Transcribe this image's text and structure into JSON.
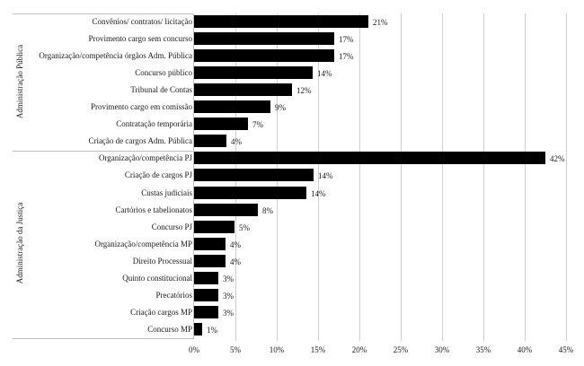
{
  "chart_data": {
    "type": "bar",
    "orientation": "horizontal",
    "title": "",
    "xlabel": "",
    "ylabel": "",
    "xlim": [
      0,
      45
    ],
    "x_ticks": [
      "0%",
      "5%",
      "10%",
      "15%",
      "20%",
      "25%",
      "30%",
      "35%",
      "40%",
      "45%"
    ],
    "grid": true,
    "legend": null,
    "groups": [
      {
        "name": "Administração Pública",
        "categories": [
          "Convênios/ contratos/ licitação",
          "Provimento cargo sem concurso",
          "Organização/competência órgãos Adm. Pública",
          "Concurso público",
          "Tribunal de Contas",
          "Provimento cargo em comissão",
          "Contratação temporária",
          "Criação de cargos Adm. Pública"
        ],
        "values": [
          21,
          17,
          17,
          14,
          12,
          9,
          7,
          4
        ],
        "labels": [
          "21%",
          "17%",
          "17%",
          "14%",
          "12%",
          "9%",
          "7%",
          "4%"
        ]
      },
      {
        "name": "Administração da Justiça",
        "categories": [
          "Organização/competência PJ",
          "Criação de cargos PJ",
          "Custas judiciais",
          "Cartórios e tabelionatos",
          "Concurso PJ",
          "Organização/competência MP",
          "Direito Processual",
          "Quinto constitucional",
          "Precatórios",
          "Criação cargos MP",
          "Concurso MP"
        ],
        "values": [
          42,
          14,
          14,
          8,
          5,
          4,
          4,
          3,
          3,
          3,
          1
        ],
        "labels": [
          "42%",
          "14%",
          "14%",
          "8%",
          "5%",
          "4%",
          "4%",
          "3%",
          "3%",
          "3%",
          "1%"
        ]
      }
    ],
    "bar_lengths_estimated": [
      21.1,
      17.0,
      17.0,
      14.4,
      11.8,
      9.2,
      6.5,
      3.9,
      42.5,
      14.5,
      13.6,
      7.7,
      4.9,
      3.8,
      3.8,
      2.9,
      2.9,
      2.9,
      1.0
    ],
    "bar_color": "#000000",
    "grid_color": "#cfcfcf"
  }
}
